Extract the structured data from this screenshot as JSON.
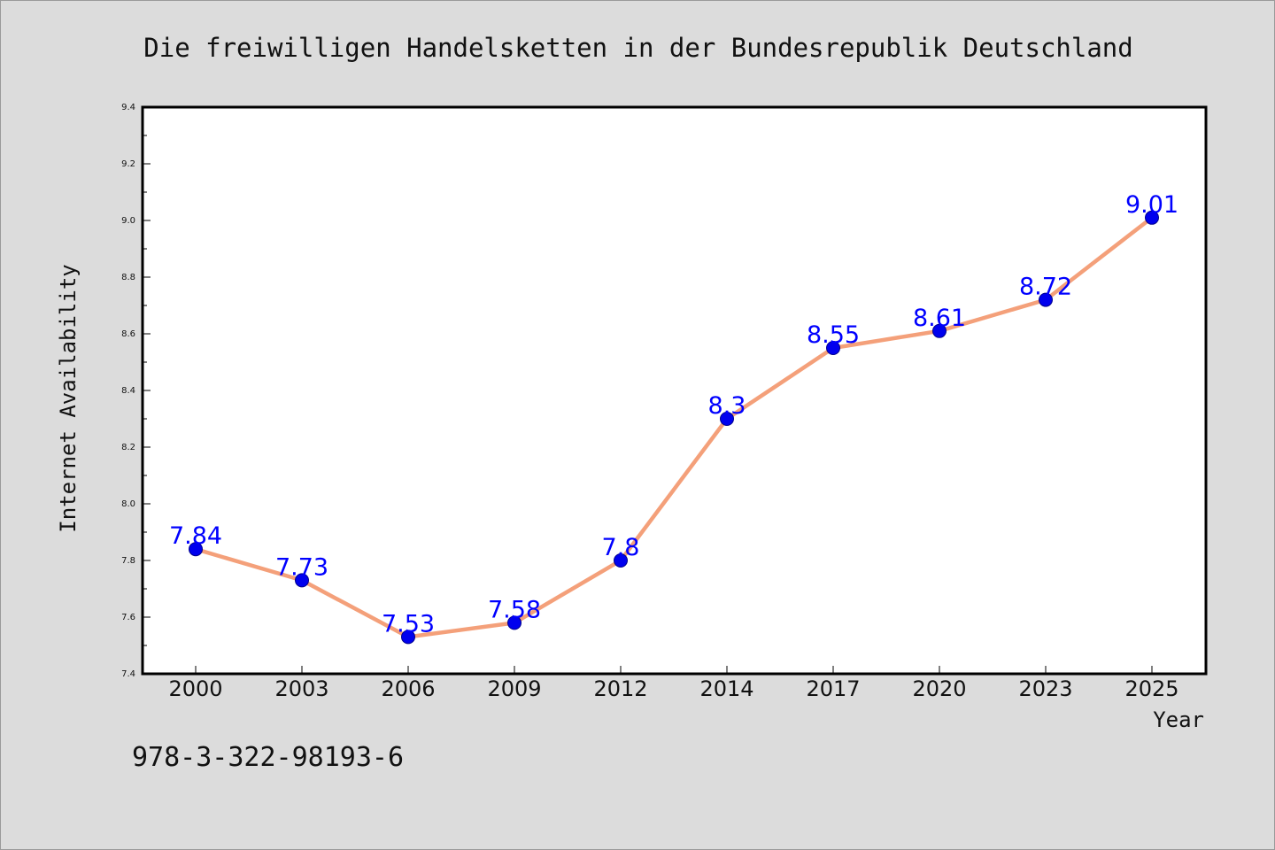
{
  "chart_data": {
    "type": "line",
    "title": "Die freiwilligen Handelsketten in der Bundesrepublik Deutschland",
    "xlabel": "Year",
    "ylabel": "Internet Availability",
    "categories": [
      "2000",
      "2003",
      "2006",
      "2009",
      "2012",
      "2014",
      "2017",
      "2020",
      "2023",
      "2025"
    ],
    "values": [
      7.84,
      7.73,
      7.53,
      7.58,
      7.8,
      8.3,
      8.55,
      8.61,
      8.72,
      9.01
    ],
    "data_labels": [
      "7.84",
      "7.73",
      "7.53",
      "7.58",
      "7.8",
      "8.3",
      "8.55",
      "8.61",
      "8.72",
      "9.01"
    ],
    "ylim": [
      7.4,
      9.4
    ],
    "y_ticks": [
      "7.4",
      "7.6",
      "7.8",
      "8.0",
      "8.2",
      "8.4",
      "8.6",
      "8.8",
      "9.0",
      "9.2",
      "9.4"
    ],
    "grid": false,
    "legend": "none",
    "colors": {
      "line": "#f4a07a",
      "marker": "#0000ee",
      "label": "#0000ff",
      "background": "#dcdcdc",
      "plot_background": "#ffffff"
    }
  },
  "footer": {
    "isbn": "978-3-322-98193-6"
  }
}
